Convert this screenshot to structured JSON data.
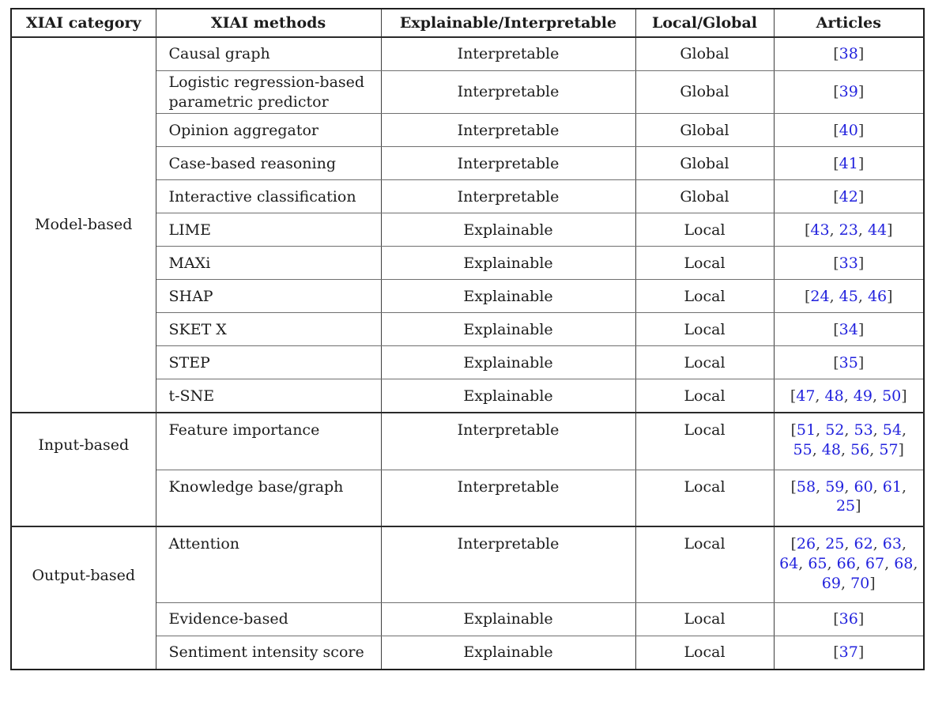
{
  "table": {
    "headers": [
      "XIAI category",
      "XIAI methods",
      "Explainable/Interpretable",
      "Local/Global",
      "Articles"
    ],
    "groups": [
      {
        "category": "Model-based",
        "rows": [
          {
            "method": "Causal graph",
            "explainability": "Interpretable",
            "scope": "Global",
            "articles": [
              38
            ]
          },
          {
            "method": "Logistic regression-based parametric predictor",
            "explainability": "Interpretable",
            "scope": "Global",
            "articles": [
              39
            ]
          },
          {
            "method": "Opinion aggregator",
            "explainability": "Interpretable",
            "scope": "Global",
            "articles": [
              40
            ]
          },
          {
            "method": "Case-based reasoning",
            "explainability": "Interpretable",
            "scope": "Global",
            "articles": [
              41
            ]
          },
          {
            "method": "Interactive classification",
            "explainability": "Interpretable",
            "scope": "Global",
            "articles": [
              42
            ]
          },
          {
            "method": "LIME",
            "explainability": "Explainable",
            "scope": "Local",
            "articles": [
              43,
              23,
              44
            ]
          },
          {
            "method": "MAXi",
            "explainability": "Explainable",
            "scope": "Local",
            "articles": [
              33
            ]
          },
          {
            "method": "SHAP",
            "explainability": "Explainable",
            "scope": "Local",
            "articles": [
              24,
              45,
              46
            ]
          },
          {
            "method": "SKET X",
            "explainability": "Explainable",
            "scope": "Local",
            "articles": [
              34
            ]
          },
          {
            "method": "STEP",
            "explainability": "Explainable",
            "scope": "Local",
            "articles": [
              35
            ]
          },
          {
            "method": "t-SNE",
            "explainability": "Explainable",
            "scope": "Local",
            "articles": [
              47,
              48,
              49,
              50
            ]
          }
        ]
      },
      {
        "category": "Input-based",
        "rows": [
          {
            "method": "Feature importance",
            "explainability": "Interpretable",
            "scope": "Local",
            "articles": [
              51,
              52,
              53,
              54,
              55,
              48,
              56,
              57
            ]
          },
          {
            "method": "Knowledge base/graph",
            "explainability": "Interpretable",
            "scope": "Local",
            "articles": [
              58,
              59,
              60,
              61,
              25
            ]
          }
        ]
      },
      {
        "category": "Output-based",
        "rows": [
          {
            "method": "Attention",
            "explainability": "Interpretable",
            "scope": "Local",
            "articles": [
              26,
              25,
              62,
              63,
              64,
              65,
              66,
              67,
              68,
              69,
              70
            ]
          },
          {
            "method": "Evidence-based",
            "explainability": "Explainable",
            "scope": "Local",
            "articles": [
              36
            ]
          },
          {
            "method": "Sentiment intensity score",
            "explainability": "Explainable",
            "scope": "Local",
            "articles": [
              37
            ]
          }
        ]
      }
    ]
  },
  "colors": {
    "citation_link": "#2222dd",
    "text_primary": "#1c1c1c",
    "table_border": "#1f1f1f"
  }
}
